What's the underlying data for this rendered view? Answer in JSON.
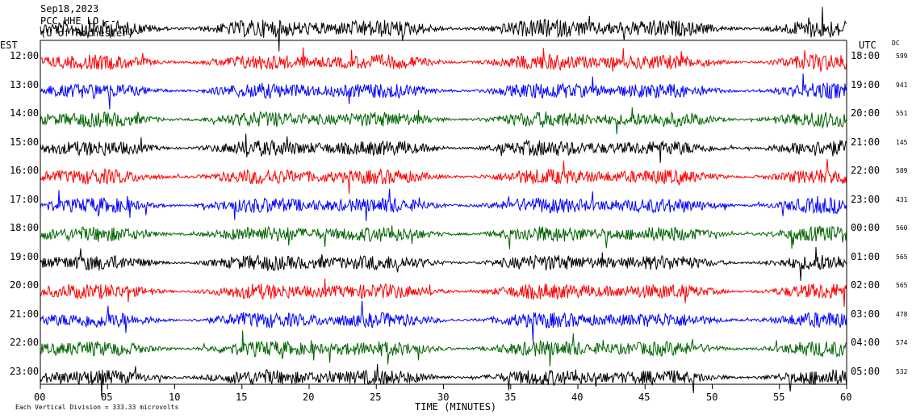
{
  "header": {
    "date": "Sep18,2023",
    "station": "PCC HHE LO --",
    "location": "(U of Rochester)"
  },
  "chart_data": {
    "type": "line",
    "title": "Sep18,2023",
    "left_axis_label": "EST",
    "right_axis_label": "UTC",
    "dc_label": "DC",
    "xlabel": "TIME (MINUTES)",
    "xlim": [
      0,
      60
    ],
    "x_ticks": [
      "00",
      "05",
      "10",
      "15",
      "20",
      "25",
      "30",
      "35",
      "40",
      "45",
      "50",
      "55",
      "60"
    ],
    "rows": [
      {
        "est": "12:00",
        "utc": "18:00",
        "dc": "599",
        "color": "#ff0000"
      },
      {
        "est": "13:00",
        "utc": "19:00",
        "dc": "941",
        "color": "#0000ff"
      },
      {
        "est": "14:00",
        "utc": "20:00",
        "dc": "551",
        "color": "#006400"
      },
      {
        "est": "15:00",
        "utc": "21:00",
        "dc": "145",
        "color": "#000000"
      },
      {
        "est": "16:00",
        "utc": "22:00",
        "dc": "589",
        "color": "#ff0000"
      },
      {
        "est": "17:00",
        "utc": "23:00",
        "dc": "431",
        "color": "#0000ff"
      },
      {
        "est": "18:00",
        "utc": "00:00",
        "dc": "560",
        "color": "#006400"
      },
      {
        "est": "19:00",
        "utc": "01:00",
        "dc": "565",
        "color": "#000000"
      },
      {
        "est": "20:00",
        "utc": "02:00",
        "dc": "565",
        "color": "#ff0000"
      },
      {
        "est": "21:00",
        "utc": "03:00",
        "dc": "478",
        "color": "#0000ff"
      },
      {
        "est": "22:00",
        "utc": "04:00",
        "dc": "574",
        "color": "#006400"
      },
      {
        "est": "23:00",
        "utc": "05:00",
        "dc": "532",
        "color": "#000000"
      }
    ],
    "top_trace_color": "#000000",
    "footer_note": "Each Vertical Division =  333.33 microvolts"
  }
}
